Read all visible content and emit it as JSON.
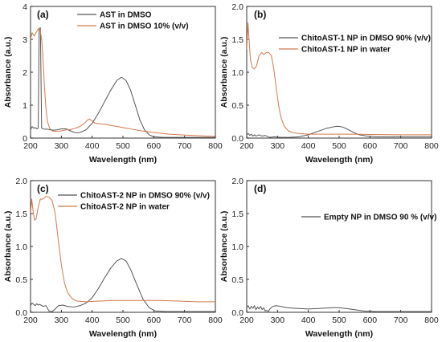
{
  "chart_data": [
    {
      "panel": "(a)",
      "type": "line",
      "xlabel": "Wavelength (nm)",
      "ylabel": "Absorbance (a.u.)",
      "xlim": [
        200,
        800
      ],
      "ylim": [
        0,
        4
      ],
      "xticks": [
        "200",
        "300",
        "400",
        "500",
        "600",
        "700",
        "800"
      ],
      "yticks": [
        "0",
        "1",
        "2",
        "3",
        "4"
      ],
      "grid": false,
      "legend_position": "top-center",
      "series": [
        {
          "name": "AST in DMSO",
          "color": "#555555",
          "points": [
            [
              200,
              0.25
            ],
            [
              205,
              0.35
            ],
            [
              210,
              0.3
            ],
            [
              215,
              0.32
            ],
            [
              220,
              0.28
            ],
            [
              225,
              0.3
            ],
            [
              228,
              3.3
            ],
            [
              232,
              3.35
            ],
            [
              236,
              0.3
            ],
            [
              245,
              0.27
            ],
            [
              255,
              0.27
            ],
            [
              265,
              0.25
            ],
            [
              275,
              0.24
            ],
            [
              285,
              0.25
            ],
            [
              300,
              0.28
            ],
            [
              315,
              0.28
            ],
            [
              330,
              0.22
            ],
            [
              340,
              0.18
            ],
            [
              350,
              0.16
            ],
            [
              360,
              0.17
            ],
            [
              380,
              0.25
            ],
            [
              400,
              0.45
            ],
            [
              420,
              0.75
            ],
            [
              440,
              1.1
            ],
            [
              460,
              1.45
            ],
            [
              480,
              1.75
            ],
            [
              495,
              1.85
            ],
            [
              510,
              1.75
            ],
            [
              525,
              1.45
            ],
            [
              540,
              1.0
            ],
            [
              555,
              0.55
            ],
            [
              570,
              0.25
            ],
            [
              585,
              0.1
            ],
            [
              600,
              0.04
            ],
            [
              630,
              0.02
            ],
            [
              700,
              0.02
            ],
            [
              800,
              0.02
            ]
          ]
        },
        {
          "name": "AST in DMSO 10% (v/v)",
          "color": "#d4784a",
          "points": [
            [
              200,
              3.0
            ],
            [
              205,
              3.2
            ],
            [
              212,
              3.1
            ],
            [
              218,
              3.2
            ],
            [
              224,
              3.3
            ],
            [
              230,
              3.35
            ],
            [
              236,
              3.0
            ],
            [
              240,
              2.5
            ],
            [
              245,
              1.6
            ],
            [
              250,
              0.9
            ],
            [
              255,
              0.5
            ],
            [
              262,
              0.3
            ],
            [
              270,
              0.22
            ],
            [
              285,
              0.2
            ],
            [
              300,
              0.22
            ],
            [
              315,
              0.25
            ],
            [
              330,
              0.26
            ],
            [
              345,
              0.3
            ],
            [
              360,
              0.35
            ],
            [
              375,
              0.45
            ],
            [
              385,
              0.55
            ],
            [
              392,
              0.58
            ],
            [
              400,
              0.52
            ],
            [
              410,
              0.45
            ],
            [
              420,
              0.44
            ],
            [
              440,
              0.42
            ],
            [
              470,
              0.37
            ],
            [
              500,
              0.32
            ],
            [
              530,
              0.27
            ],
            [
              560,
              0.22
            ],
            [
              600,
              0.17
            ],
            [
              650,
              0.12
            ],
            [
              700,
              0.09
            ],
            [
              750,
              0.07
            ],
            [
              800,
              0.05
            ]
          ]
        }
      ]
    },
    {
      "panel": "(b)",
      "type": "line",
      "xlabel": "Wavelength (nm)",
      "ylabel": "Absorbance (a.u.)",
      "xlim": [
        200,
        800
      ],
      "ylim": [
        0,
        2.0
      ],
      "xticks": [
        "200",
        "300",
        "400",
        "500",
        "600",
        "700",
        "800"
      ],
      "yticks": [
        "0.0",
        "0.5",
        "1.0",
        "1.5",
        "2.0"
      ],
      "grid": false,
      "legend_position": "top-center",
      "series": [
        {
          "name": "ChitoAST-1 NP in DMSO 90% (v/v)",
          "color": "#555555",
          "points": [
            [
              200,
              0.05
            ],
            [
              205,
              0.07
            ],
            [
              210,
              0.04
            ],
            [
              215,
              0.06
            ],
            [
              220,
              0.03
            ],
            [
              225,
              0.05
            ],
            [
              230,
              0.03
            ],
            [
              240,
              0.05
            ],
            [
              250,
              0.03
            ],
            [
              260,
              0.04
            ],
            [
              275,
              0.01
            ],
            [
              290,
              0.02
            ],
            [
              310,
              0.01
            ],
            [
              340,
              0.01
            ],
            [
              370,
              0.02
            ],
            [
              400,
              0.05
            ],
            [
              430,
              0.1
            ],
            [
              460,
              0.15
            ],
            [
              480,
              0.17
            ],
            [
              495,
              0.18
            ],
            [
              510,
              0.17
            ],
            [
              525,
              0.14
            ],
            [
              545,
              0.09
            ],
            [
              565,
              0.05
            ],
            [
              590,
              0.03
            ],
            [
              620,
              0.02
            ],
            [
              700,
              0.02
            ],
            [
              800,
              0.02
            ]
          ]
        },
        {
          "name": "ChitoAST-1 NP in water",
          "color": "#d4784a",
          "points": [
            [
              200,
              1.35
            ],
            [
              204,
              1.75
            ],
            [
              207,
              1.55
            ],
            [
              212,
              1.2
            ],
            [
              218,
              1.07
            ],
            [
              225,
              1.05
            ],
            [
              232,
              1.1
            ],
            [
              240,
              1.25
            ],
            [
              248,
              1.3
            ],
            [
              256,
              1.27
            ],
            [
              264,
              1.3
            ],
            [
              272,
              1.3
            ],
            [
              280,
              1.25
            ],
            [
              288,
              1.05
            ],
            [
              296,
              0.75
            ],
            [
              304,
              0.48
            ],
            [
              312,
              0.3
            ],
            [
              322,
              0.18
            ],
            [
              335,
              0.11
            ],
            [
              350,
              0.08
            ],
            [
              370,
              0.07
            ],
            [
              400,
              0.06
            ],
            [
              450,
              0.06
            ],
            [
              500,
              0.06
            ],
            [
              550,
              0.06
            ],
            [
              600,
              0.055
            ],
            [
              700,
              0.05
            ],
            [
              800,
              0.05
            ]
          ]
        }
      ]
    },
    {
      "panel": "(c)",
      "type": "line",
      "xlabel": "Wavelength (nm)",
      "ylabel": "Absorbance (a.u.)",
      "xlim": [
        200,
        800
      ],
      "ylim": [
        0,
        2.0
      ],
      "xticks": [
        "200",
        "300",
        "400",
        "500",
        "600",
        "700",
        "800"
      ],
      "yticks": [
        "0.0",
        "0.5",
        "1.0",
        "1.5",
        "2.0"
      ],
      "grid": false,
      "legend_position": "top-center",
      "series": [
        {
          "name": "ChitoAST-2 NP in DMSO 90% (v/v)",
          "color": "#555555",
          "points": [
            [
              200,
              0.1
            ],
            [
              205,
              0.14
            ],
            [
              210,
              0.12
            ],
            [
              215,
              0.1
            ],
            [
              220,
              0.13
            ],
            [
              225,
              0.11
            ],
            [
              230,
              0.12
            ],
            [
              240,
              0.09
            ],
            [
              250,
              0.1
            ],
            [
              260,
              0.02
            ],
            [
              270,
              0.01
            ],
            [
              280,
              0.05
            ],
            [
              290,
              0.1
            ],
            [
              305,
              0.11
            ],
            [
              320,
              0.09
            ],
            [
              340,
              0.08
            ],
            [
              360,
              0.1
            ],
            [
              380,
              0.14
            ],
            [
              400,
              0.22
            ],
            [
              420,
              0.36
            ],
            [
              440,
              0.52
            ],
            [
              460,
              0.67
            ],
            [
              480,
              0.78
            ],
            [
              495,
              0.82
            ],
            [
              510,
              0.78
            ],
            [
              525,
              0.65
            ],
            [
              545,
              0.42
            ],
            [
              565,
              0.2
            ],
            [
              585,
              0.07
            ],
            [
              605,
              0.02
            ],
            [
              640,
              0.01
            ],
            [
              700,
              0.01
            ],
            [
              800,
              0.01
            ]
          ]
        },
        {
          "name": "ChitoAST-2 NP in water",
          "color": "#d4784a",
          "points": [
            [
              200,
              1.5
            ],
            [
              204,
              1.72
            ],
            [
              208,
              1.55
            ],
            [
              213,
              1.4
            ],
            [
              218,
              1.42
            ],
            [
              225,
              1.6
            ],
            [
              232,
              1.72
            ],
            [
              240,
              1.72
            ],
            [
              250,
              1.76
            ],
            [
              260,
              1.75
            ],
            [
              270,
              1.7
            ],
            [
              280,
              1.5
            ],
            [
              290,
              1.1
            ],
            [
              300,
              0.72
            ],
            [
              310,
              0.45
            ],
            [
              320,
              0.3
            ],
            [
              335,
              0.21
            ],
            [
              350,
              0.17
            ],
            [
              380,
              0.16
            ],
            [
              420,
              0.17
            ],
            [
              470,
              0.18
            ],
            [
              520,
              0.18
            ],
            [
              570,
              0.18
            ],
            [
              620,
              0.18
            ],
            [
              680,
              0.17
            ],
            [
              740,
              0.16
            ],
            [
              800,
              0.16
            ]
          ]
        }
      ]
    },
    {
      "panel": "(d)",
      "type": "line",
      "xlabel": "Wavelength (nm)",
      "ylabel": "Absorbance (a.u.)",
      "xlim": [
        200,
        800
      ],
      "ylim": [
        0,
        2.0
      ],
      "xticks": [
        "200",
        "300",
        "400",
        "500",
        "600",
        "700",
        "800"
      ],
      "yticks": [
        "0.0",
        "0.5",
        "1.0",
        "1.5",
        "2.0"
      ],
      "grid": false,
      "legend_position": "center-right",
      "series": [
        {
          "name": "Empty NP in DMSO 90 % (v/v)",
          "color": "#555555",
          "points": [
            [
              200,
              0.07
            ],
            [
              205,
              0.1
            ],
            [
              210,
              0.05
            ],
            [
              215,
              0.09
            ],
            [
              220,
              0.06
            ],
            [
              225,
              0.1
            ],
            [
              230,
              0.04
            ],
            [
              235,
              0.08
            ],
            [
              240,
              0.05
            ],
            [
              245,
              0.09
            ],
            [
              250,
              0.04
            ],
            [
              255,
              0.07
            ],
            [
              260,
              0.02
            ],
            [
              265,
              0.03
            ],
            [
              270,
              0.01
            ],
            [
              275,
              0.05
            ],
            [
              285,
              0.09
            ],
            [
              295,
              0.1
            ],
            [
              310,
              0.09
            ],
            [
              330,
              0.07
            ],
            [
              360,
              0.06
            ],
            [
              400,
              0.05
            ],
            [
              440,
              0.06
            ],
            [
              480,
              0.07
            ],
            [
              500,
              0.07
            ],
            [
              520,
              0.06
            ],
            [
              550,
              0.04
            ],
            [
              580,
              0.02
            ],
            [
              620,
              0.01
            ],
            [
              700,
              0.01
            ],
            [
              800,
              0.01
            ]
          ]
        }
      ]
    }
  ]
}
